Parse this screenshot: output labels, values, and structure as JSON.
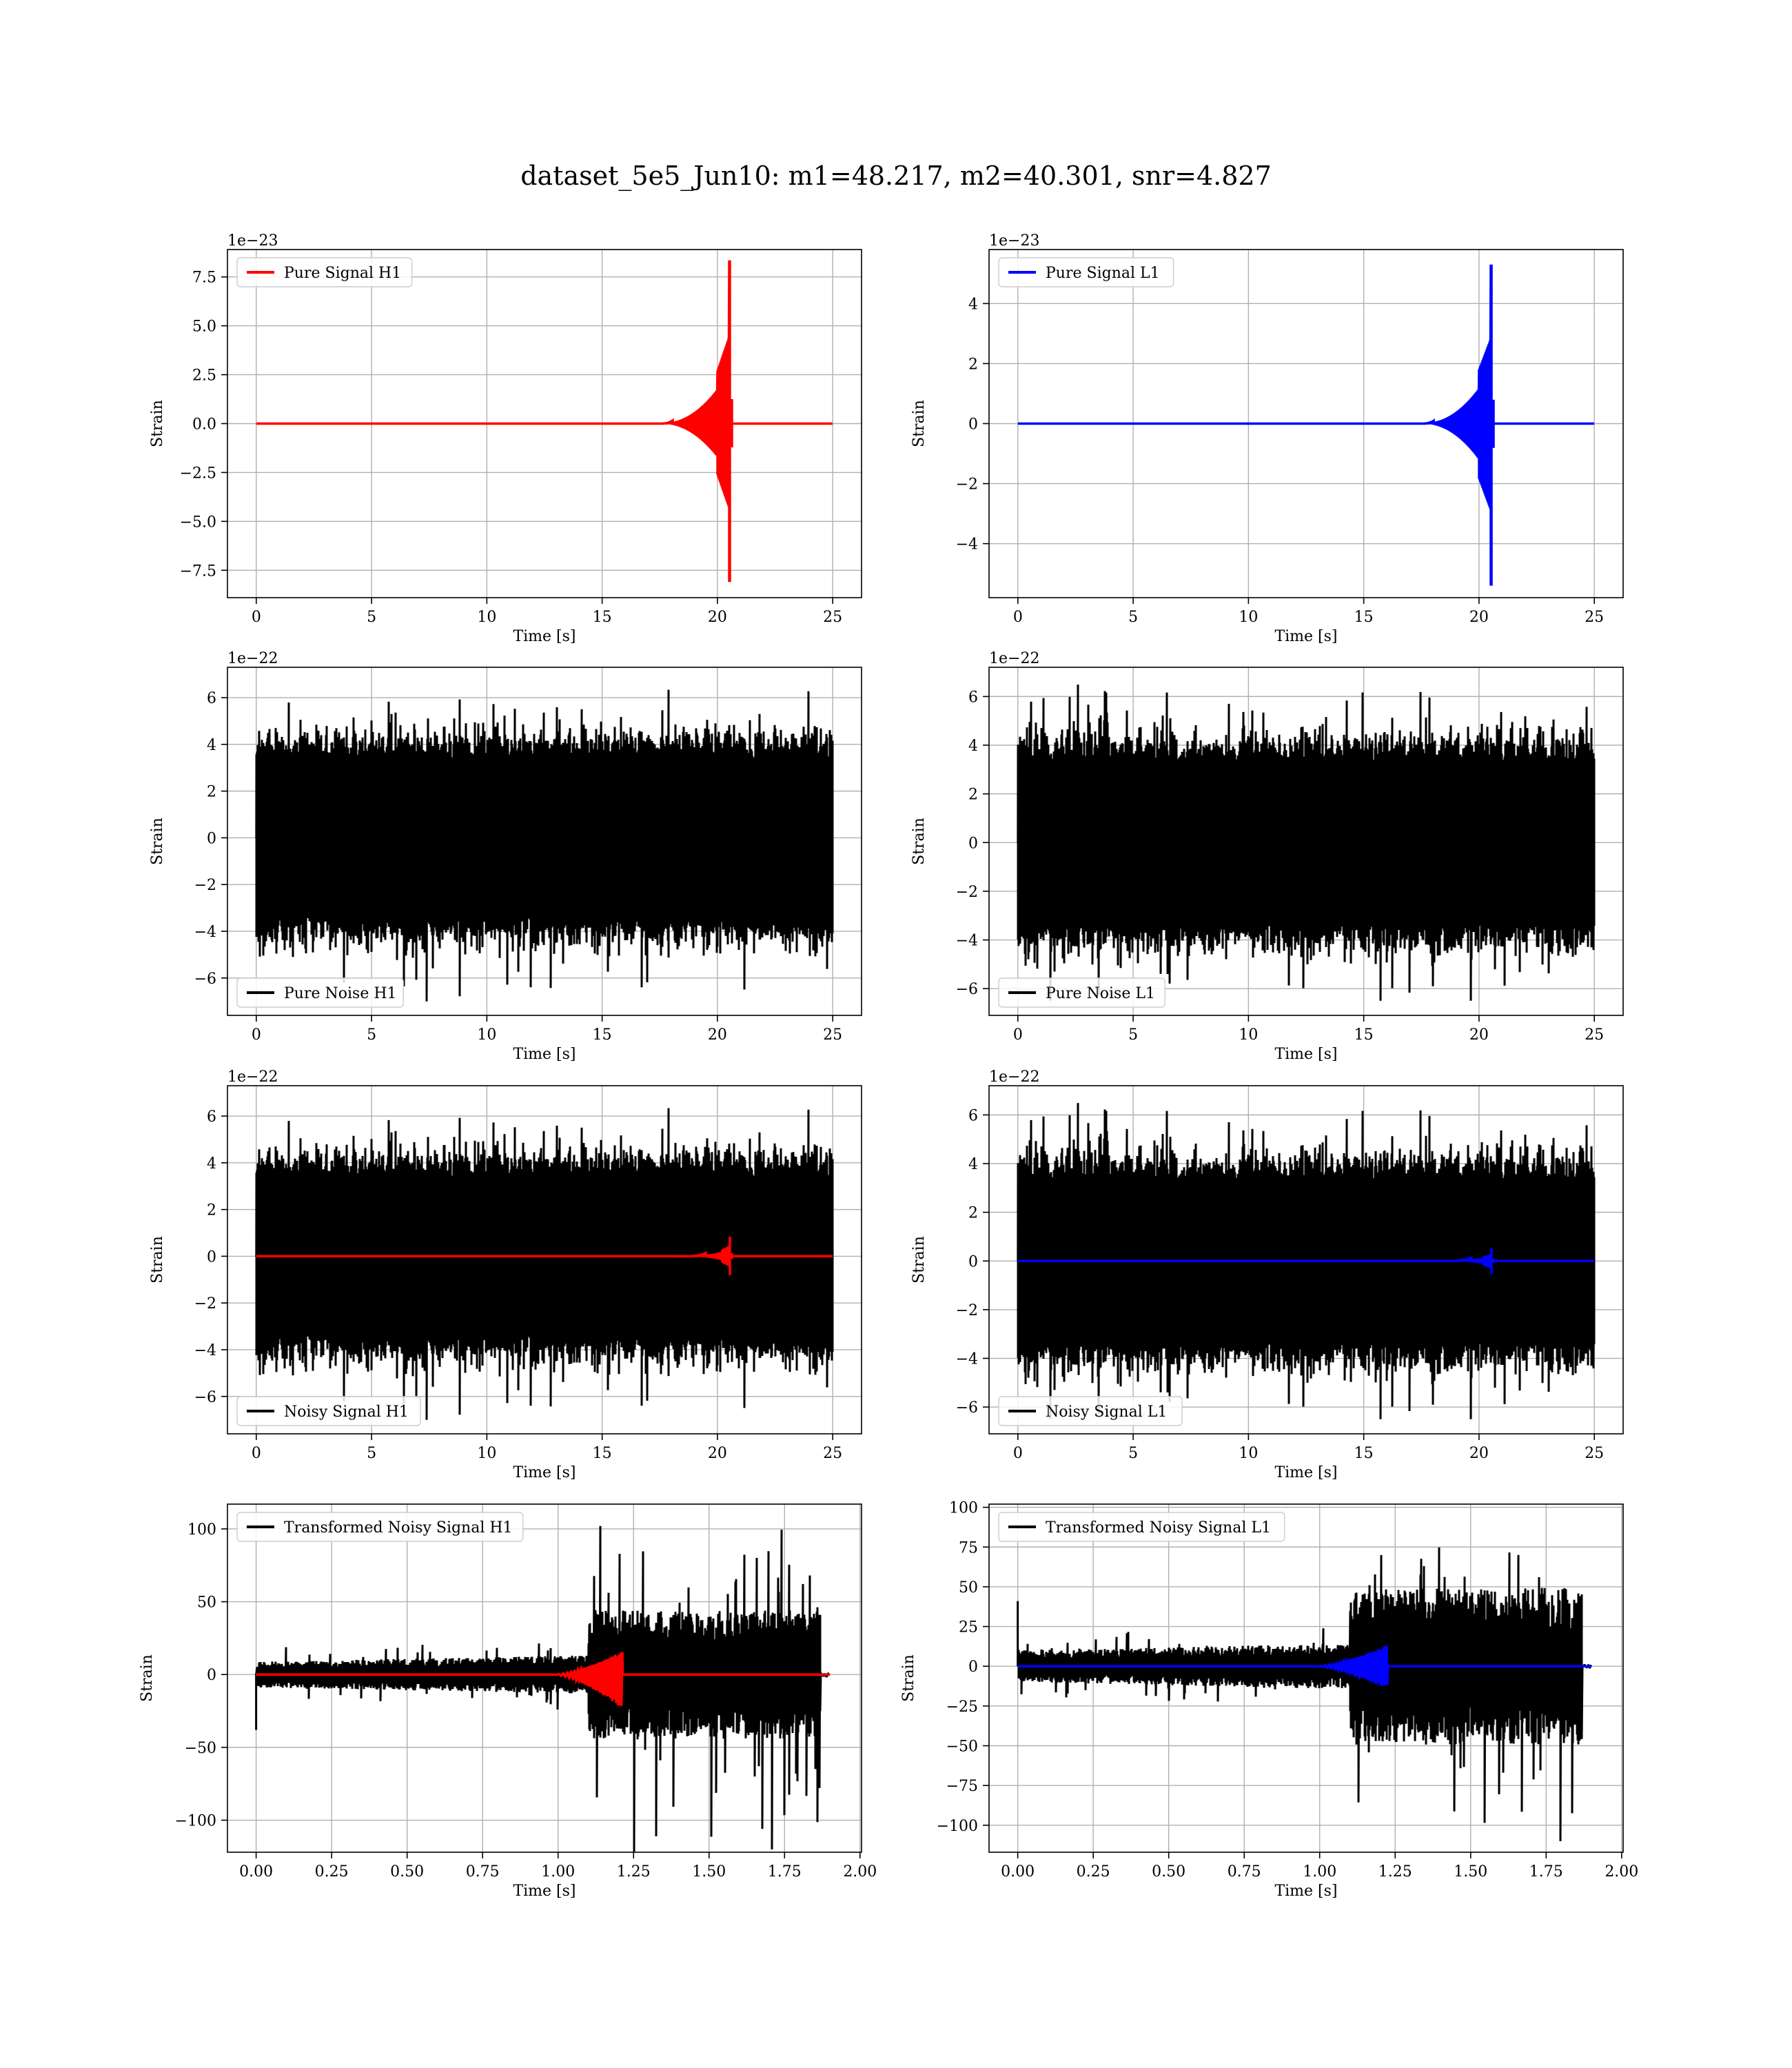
{
  "figure": {
    "title": "dataset_5e5_Jun10: m1=48.217, m2=40.301, snr=4.827"
  },
  "colors": {
    "h1_signal": "#ff0000",
    "l1_signal": "#0000ff",
    "noise": "#000000",
    "grid": "#b0b0b0",
    "axes": "#000000"
  },
  "chart_data": [
    {
      "id": "pure-signal-h1",
      "type": "line",
      "legend_placement": "upper left",
      "grid": true,
      "xlabel": "Time [s]",
      "ylabel": "Strain",
      "offset_text": "1e−23",
      "xlim": [
        -1.25,
        26.25
      ],
      "ylim": [
        -8.9,
        8.9
      ],
      "xticks": [
        0,
        5,
        10,
        15,
        20,
        25
      ],
      "xtick_labels": [
        "0",
        "5",
        "10",
        "15",
        "20",
        "25"
      ],
      "yticks": [
        -7.5,
        -5.0,
        -2.5,
        0.0,
        2.5,
        5.0,
        7.5
      ],
      "ytick_labels": [
        "−7.5",
        "−5.0",
        "−2.5",
        "0.0",
        "2.5",
        "5.0",
        "7.5"
      ],
      "series": [
        {
          "name": "Pure Signal H1",
          "color": "#ff0000",
          "kind": "chirp",
          "x_range": [
            0,
            25
          ],
          "merger_time": 20.55,
          "onset": 17.5,
          "peak_pos": 8.35,
          "peak_neg": -8.1,
          "plateau": 2.7
        }
      ]
    },
    {
      "id": "pure-signal-l1",
      "type": "line",
      "legend_placement": "upper left",
      "grid": true,
      "xlabel": "Time [s]",
      "ylabel": "Strain",
      "offset_text": "1e−23",
      "xlim": [
        -1.25,
        26.25
      ],
      "ylim": [
        -5.8,
        5.8
      ],
      "xticks": [
        0,
        5,
        10,
        15,
        20,
        25
      ],
      "xtick_labels": [
        "0",
        "5",
        "10",
        "15",
        "20",
        "25"
      ],
      "yticks": [
        -4,
        -2,
        0,
        2,
        4
      ],
      "ytick_labels": [
        "−4",
        "−2",
        "0",
        "2",
        "4"
      ],
      "series": [
        {
          "name": "Pure Signal L1",
          "color": "#0000ff",
          "kind": "chirp",
          "x_range": [
            0,
            25
          ],
          "merger_time": 20.55,
          "onset": 17.5,
          "peak_pos": 5.3,
          "peak_neg": -5.4,
          "plateau": 1.8
        }
      ]
    },
    {
      "id": "pure-noise-h1",
      "type": "line",
      "legend_placement": "lower left",
      "grid": true,
      "xlabel": "Time [s]",
      "ylabel": "Strain",
      "offset_text": "1e−22",
      "xlim": [
        -1.25,
        26.25
      ],
      "ylim": [
        -7.6,
        7.3
      ],
      "xticks": [
        0,
        5,
        10,
        15,
        20,
        25
      ],
      "xtick_labels": [
        "0",
        "5",
        "10",
        "15",
        "20",
        "25"
      ],
      "yticks": [
        -6,
        -4,
        -2,
        0,
        2,
        4,
        6
      ],
      "ytick_labels": [
        "−6",
        "−4",
        "−2",
        "0",
        "2",
        "4",
        "6"
      ],
      "series": [
        {
          "name": "Pure Noise H1",
          "color": "#000000",
          "kind": "noise",
          "x_range": [
            0,
            25
          ],
          "max": 6.6,
          "min": -7.0,
          "band": 3.4,
          "seed": 11
        }
      ]
    },
    {
      "id": "pure-noise-l1",
      "type": "line",
      "legend_placement": "lower left",
      "grid": true,
      "xlabel": "Time [s]",
      "ylabel": "Strain",
      "offset_text": "1e−22",
      "xlim": [
        -1.25,
        26.25
      ],
      "ylim": [
        -7.1,
        7.2
      ],
      "xticks": [
        0,
        5,
        10,
        15,
        20,
        25
      ],
      "xtick_labels": [
        "0",
        "5",
        "10",
        "15",
        "20",
        "25"
      ],
      "yticks": [
        -6,
        -4,
        -2,
        0,
        2,
        4,
        6
      ],
      "ytick_labels": [
        "−6",
        "−4",
        "−2",
        "0",
        "2",
        "4",
        "6"
      ],
      "series": [
        {
          "name": "Pure Noise L1",
          "color": "#000000",
          "kind": "noise",
          "x_range": [
            0,
            25
          ],
          "max": 6.6,
          "min": -6.5,
          "band": 3.3,
          "seed": 23
        }
      ]
    },
    {
      "id": "noisy-signal-h1",
      "type": "line",
      "legend_placement": "lower left",
      "grid": true,
      "xlabel": "Time [s]",
      "ylabel": "Strain",
      "offset_text": "1e−22",
      "xlim": [
        -1.25,
        26.25
      ],
      "ylim": [
        -7.6,
        7.3
      ],
      "xticks": [
        0,
        5,
        10,
        15,
        20,
        25
      ],
      "xtick_labels": [
        "0",
        "5",
        "10",
        "15",
        "20",
        "25"
      ],
      "yticks": [
        -6,
        -4,
        -2,
        0,
        2,
        4,
        6
      ],
      "ytick_labels": [
        "−6",
        "−4",
        "−2",
        "0",
        "2",
        "4",
        "6"
      ],
      "series": [
        {
          "name": "Noisy Signal H1",
          "color": "#000000",
          "kind": "noise",
          "x_range": [
            0,
            25
          ],
          "max": 6.6,
          "min": -7.0,
          "band": 3.4,
          "seed": 11
        },
        {
          "name": "",
          "color": "#ff0000",
          "kind": "chirp",
          "x_range": [
            0,
            25
          ],
          "merger_time": 20.55,
          "onset": 18.6,
          "peak_pos": 0.84,
          "peak_neg": -0.81,
          "plateau": 0.27
        }
      ]
    },
    {
      "id": "noisy-signal-l1",
      "type": "line",
      "legend_placement": "lower left",
      "grid": true,
      "xlabel": "Time [s]",
      "ylabel": "Strain",
      "offset_text": "1e−22",
      "xlim": [
        -1.25,
        26.25
      ],
      "ylim": [
        -7.1,
        7.2
      ],
      "xticks": [
        0,
        5,
        10,
        15,
        20,
        25
      ],
      "xtick_labels": [
        "0",
        "5",
        "10",
        "15",
        "20",
        "25"
      ],
      "yticks": [
        -6,
        -4,
        -2,
        0,
        2,
        4,
        6
      ],
      "ytick_labels": [
        "−6",
        "−4",
        "−2",
        "0",
        "2",
        "4",
        "6"
      ],
      "series": [
        {
          "name": "Noisy Signal L1",
          "color": "#000000",
          "kind": "noise",
          "x_range": [
            0,
            25
          ],
          "max": 6.6,
          "min": -6.5,
          "band": 3.3,
          "seed": 23
        },
        {
          "name": "",
          "color": "#0000ff",
          "kind": "chirp",
          "x_range": [
            0,
            25
          ],
          "merger_time": 20.55,
          "onset": 18.6,
          "peak_pos": 0.53,
          "peak_neg": -0.54,
          "plateau": 0.18
        }
      ]
    },
    {
      "id": "transformed-h1",
      "type": "line",
      "legend_placement": "upper left",
      "grid": true,
      "xlabel": "Time [s]",
      "ylabel": "Strain",
      "offset_text": "",
      "xlim": [
        -0.095,
        2.005
      ],
      "ylim": [
        -122,
        117
      ],
      "xticks": [
        0,
        0.25,
        0.5,
        0.75,
        1.0,
        1.25,
        1.5,
        1.75,
        2.0
      ],
      "xtick_labels": [
        "0.00",
        "0.25",
        "0.50",
        "0.75",
        "1.00",
        "1.25",
        "1.50",
        "1.75",
        "2.00"
      ],
      "yticks": [
        -100,
        -50,
        0,
        50,
        100
      ],
      "ytick_labels": [
        "−100",
        "−50",
        "0",
        "50",
        "100"
      ],
      "series": [
        {
          "name": "Transformed Noisy Signal H1",
          "color": "#000000",
          "kind": "whitened",
          "x_range": [
            0,
            1.9
          ],
          "step_time": 1.1,
          "low_band": 8,
          "high_band": 40,
          "max": 102,
          "min": -122,
          "end_time": 1.87,
          "spike_at_zero": -38,
          "seed": 31
        },
        {
          "name": "",
          "color": "#ff0000",
          "kind": "whitened_chirp",
          "x_range": [
            0,
            1.9
          ],
          "merger_time": 1.21,
          "onset": 0.98,
          "peak_pos": 16,
          "peak_neg": -23
        }
      ]
    },
    {
      "id": "transformed-l1",
      "type": "line",
      "legend_placement": "upper left",
      "grid": true,
      "xlabel": "Time [s]",
      "ylabel": "Strain",
      "offset_text": "",
      "xlim": [
        -0.095,
        2.005
      ],
      "ylim": [
        -117,
        102
      ],
      "xticks": [
        0,
        0.25,
        0.5,
        0.75,
        1.0,
        1.25,
        1.5,
        1.75,
        2.0
      ],
      "xtick_labels": [
        "0.00",
        "0.25",
        "0.50",
        "0.75",
        "1.00",
        "1.25",
        "1.50",
        "1.75",
        "2.00"
      ],
      "yticks": [
        -100,
        -75,
        -50,
        -25,
        0,
        25,
        50,
        75,
        100
      ],
      "ytick_labels": [
        "−100",
        "−75",
        "−50",
        "−25",
        "0",
        "25",
        "50",
        "75",
        "100"
      ],
      "series": [
        {
          "name": "Transformed Noisy Signal L1",
          "color": "#000000",
          "kind": "whitened",
          "x_range": [
            0,
            1.9
          ],
          "step_time": 1.1,
          "low_band": 9,
          "high_band": 45,
          "max": 89,
          "min": -110,
          "end_time": 1.87,
          "spike_at_zero": 41,
          "seed": 47
        },
        {
          "name": "",
          "color": "#0000ff",
          "kind": "whitened_chirp",
          "x_range": [
            0,
            1.9
          ],
          "merger_time": 1.22,
          "onset": 0.98,
          "peak_pos": 13,
          "peak_neg": -14
        }
      ]
    }
  ]
}
